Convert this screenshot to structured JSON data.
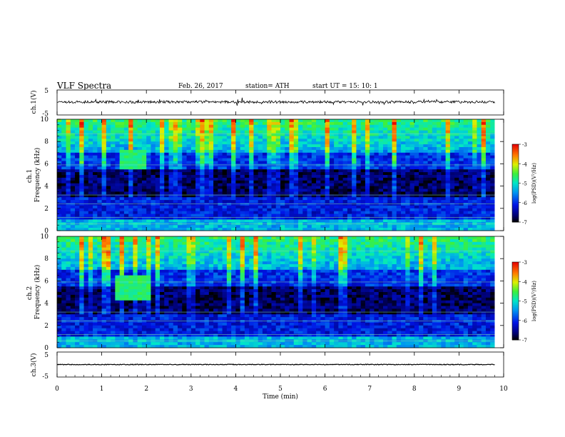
{
  "header": {
    "title": "VLF  Spectra",
    "date": "Feb. 26, 2017",
    "station": "station= ATH",
    "start": "start  UT  =    15: 10: 1"
  },
  "chart_data": [
    {
      "type": "line",
      "name": "ch1-waveform",
      "ylabel": "ch.1(V)",
      "ylim": [
        -5,
        5
      ],
      "y_ticks": [
        "5",
        "-5"
      ],
      "xlim": [
        0,
        10
      ],
      "x_end": 9.8,
      "baseline": 0.2,
      "amplitude": 0.5
    },
    {
      "type": "heatmap",
      "name": "ch1-spectrogram",
      "ylabel": "ch.1\nFrequency  (kHz)",
      "ylim": [
        0,
        10
      ],
      "y_ticks": [
        "0",
        "2",
        "4",
        "6",
        "8",
        "10"
      ],
      "xlim": [
        0,
        10
      ],
      "x_end": 9.8,
      "colorbar": {
        "label": "log(PSD)(V²/Hz)",
        "range": [
          -7,
          -3
        ],
        "ticks": [
          "-3",
          "-4",
          "-5",
          "-6",
          "-7"
        ]
      },
      "burst": {
        "t_start": 1.35,
        "t_end": 1.95,
        "f_low": 5.6,
        "f_high": 7.2
      }
    },
    {
      "type": "heatmap",
      "name": "ch2-spectrogram",
      "ylabel": "ch.2\nFrequency  (kHz)",
      "ylim": [
        0,
        10
      ],
      "y_ticks": [
        "0",
        "2",
        "4",
        "6",
        "8",
        "10"
      ],
      "xlim": [
        0,
        10
      ],
      "x_end": 9.8,
      "colorbar": {
        "label": "log(PSD)(V²/Hz)",
        "range": [
          -7,
          -3
        ],
        "ticks": [
          "-3",
          "-4",
          "-5",
          "-6",
          "-7"
        ]
      },
      "burst": {
        "t_start": 1.3,
        "t_end": 2.0,
        "f_low": 4.2,
        "f_high": 6.6
      }
    },
    {
      "type": "line",
      "name": "ch3-waveform",
      "ylabel": "ch.3(V)",
      "ylim": [
        -5,
        5
      ],
      "y_ticks": [
        "5",
        "-5"
      ],
      "xlim": [
        0,
        10
      ],
      "x_end": 9.8,
      "baseline": 0.0,
      "amplitude": 0.15
    }
  ],
  "x_axis": {
    "label": "Time  (min)",
    "ticks": [
      "0",
      "1",
      "2",
      "3",
      "4",
      "5",
      "6",
      "7",
      "8",
      "9",
      "10"
    ]
  }
}
